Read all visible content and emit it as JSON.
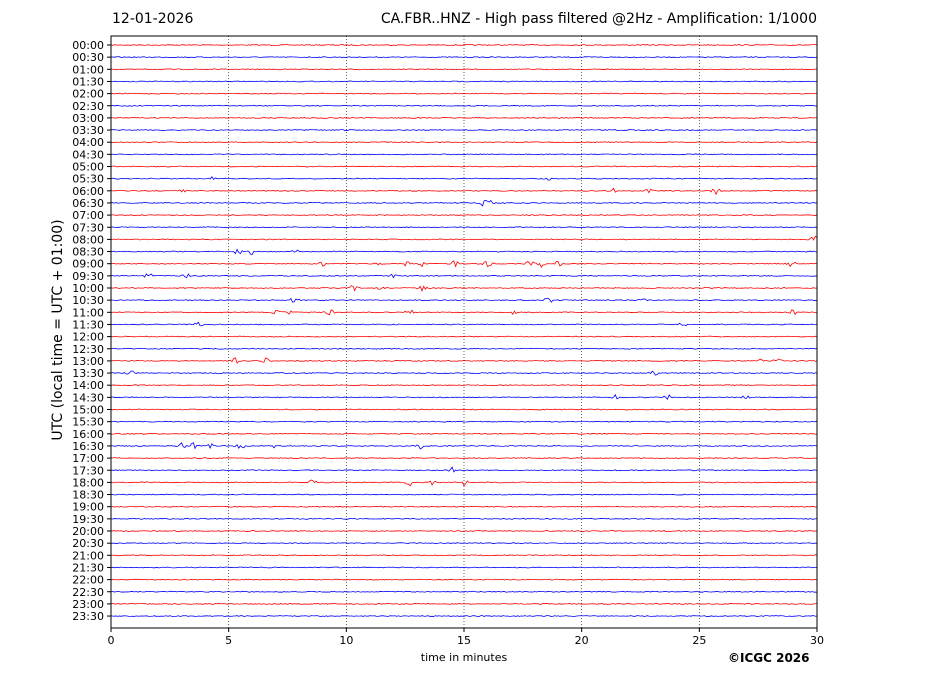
{
  "header": {
    "date": "12-01-2026",
    "station_title": "CA.FBR..HNZ - High pass filtered @2Hz - Amplification: 1/1000"
  },
  "footer": {
    "copyright": "©ICGC 2026"
  },
  "chart_data": {
    "type": "line",
    "title": "CA.FBR..HNZ - High pass filtered @2Hz - Amplification: 1/1000",
    "xlabel": "time in minutes",
    "ylabel": "UTC (local time = UTC + 01:00)",
    "xlim": [
      0,
      30
    ],
    "xticks": [
      0,
      5,
      10,
      15,
      20,
      25,
      30
    ],
    "grid": "vertical dotted lines at 5-minute intervals",
    "trace_colors": [
      "#ff0000",
      "#0000ff"
    ],
    "row_labels": [
      "00:00",
      "00:30",
      "01:00",
      "01:30",
      "02:00",
      "02:30",
      "03:00",
      "03:30",
      "04:00",
      "04:30",
      "05:00",
      "05:30",
      "06:00",
      "06:30",
      "07:00",
      "07:30",
      "08:00",
      "08:30",
      "09:00",
      "09:30",
      "10:00",
      "10:30",
      "11:00",
      "11:30",
      "12:00",
      "12:30",
      "13:00",
      "13:30",
      "14:00",
      "14:30",
      "15:00",
      "15:30",
      "16:00",
      "16:30",
      "17:00",
      "17:30",
      "18:00",
      "18:30",
      "19:00",
      "19:30",
      "20:00",
      "20:30",
      "21:00",
      "21:30",
      "22:00",
      "22:30",
      "23:00",
      "23:30"
    ],
    "events": [
      {
        "row": "05:30",
        "minutes": [
          4.3,
          18.6
        ]
      },
      {
        "row": "06:00",
        "minutes": [
          3.0,
          21.3,
          22.9,
          25.7
        ]
      },
      {
        "row": "06:30",
        "minutes": [
          15.8,
          16.1
        ]
      },
      {
        "row": "08:00",
        "minutes": [
          29.9
        ]
      },
      {
        "row": "08:30",
        "minutes": [
          5.4,
          6.0,
          7.8
        ]
      },
      {
        "row": "09:00",
        "minutes": [
          9.0,
          11.4,
          12.6,
          13.2,
          14.6,
          16.0,
          17.8,
          18.3,
          19.0,
          28.9
        ]
      },
      {
        "row": "09:30",
        "minutes": [
          1.6,
          3.2,
          12.0
        ]
      },
      {
        "row": "10:00",
        "minutes": [
          10.3,
          11.5,
          13.2
        ]
      },
      {
        "row": "10:30",
        "minutes": [
          7.8,
          18.6,
          22.6
        ]
      },
      {
        "row": "11:00",
        "minutes": [
          7.0,
          7.5,
          9.3,
          12.7,
          17.2,
          29.0
        ]
      },
      {
        "row": "11:30",
        "minutes": [
          3.7,
          24.3
        ]
      },
      {
        "row": "13:00",
        "minutes": [
          5.3,
          6.6,
          27.5,
          28.3
        ]
      },
      {
        "row": "13:30",
        "minutes": [
          0.8,
          23.1
        ]
      },
      {
        "row": "14:30",
        "minutes": [
          21.5,
          23.7,
          27.0
        ]
      },
      {
        "row": "16:30",
        "minutes": [
          3.0,
          3.5,
          4.3,
          5.5,
          6.8,
          13.1
        ]
      },
      {
        "row": "17:30",
        "minutes": [
          14.5
        ]
      },
      {
        "row": "18:00",
        "minutes": [
          8.6,
          12.7,
          13.7,
          15.0
        ]
      }
    ]
  }
}
